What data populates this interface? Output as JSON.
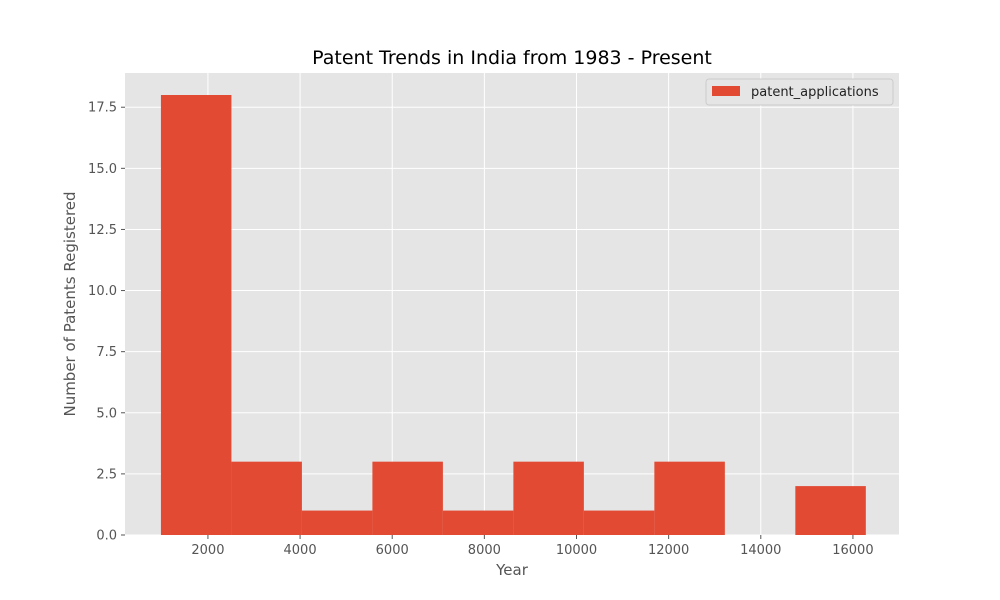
{
  "chart_data": {
    "type": "bar",
    "title": "Patent Trends in India from 1983 - Present",
    "xlabel": "Year",
    "ylabel": "Number of Patents Registered",
    "xlim": [
      200,
      17000
    ],
    "ylim": [
      0,
      18.9
    ],
    "x_ticks": [
      2000,
      4000,
      6000,
      8000,
      10000,
      12000,
      14000,
      16000
    ],
    "y_ticks": [
      0,
      2.5,
      5,
      7.5,
      10,
      12.5,
      15,
      17.5
    ],
    "x_tick_labels": [
      "2000",
      "4000",
      "6000",
      "8000",
      "10000",
      "12000",
      "14000",
      "16000"
    ],
    "y_tick_labels": [
      "0.0",
      "2.5",
      "5.0",
      "7.5",
      "10.0",
      "12.5",
      "15.0",
      "17.5"
    ],
    "grid": true,
    "legend_position": "top-right",
    "series": [
      {
        "name": "patent_applications",
        "color": "#e24a33",
        "bins": [
          {
            "start": 980,
            "end": 2510,
            "count": 18
          },
          {
            "start": 2510,
            "end": 4040,
            "count": 3
          },
          {
            "start": 4040,
            "end": 5570,
            "count": 1
          },
          {
            "start": 5570,
            "end": 7100,
            "count": 3
          },
          {
            "start": 7100,
            "end": 8630,
            "count": 1
          },
          {
            "start": 8630,
            "end": 10160,
            "count": 3
          },
          {
            "start": 10160,
            "end": 11690,
            "count": 1
          },
          {
            "start": 11690,
            "end": 13220,
            "count": 3
          },
          {
            "start": 13220,
            "end": 14750,
            "count": 0
          },
          {
            "start": 14750,
            "end": 16280,
            "count": 2
          }
        ]
      }
    ],
    "background_color": "#e5e5e5",
    "grid_color": "#ffffff"
  }
}
